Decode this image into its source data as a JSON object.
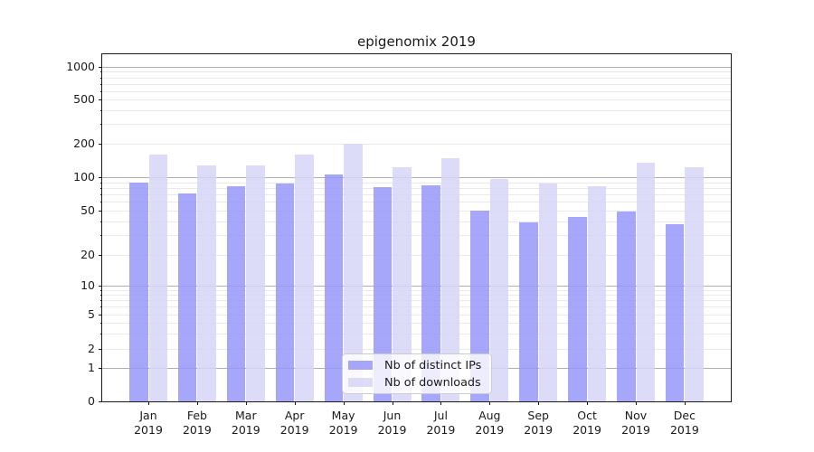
{
  "title": "epigenomix 2019",
  "chart_data": {
    "type": "bar",
    "title": "epigenomix 2019",
    "categories": [
      "Jan",
      "Feb",
      "Mar",
      "Apr",
      "May",
      "Jun",
      "Jul",
      "Aug",
      "Sep",
      "Oct",
      "Nov",
      "Dec"
    ],
    "category_year": "2019",
    "series": [
      {
        "name": "Nb of distinct IPs",
        "color": "#a6a6fa",
        "color_rgba": "rgba(149,149,249,0.84)",
        "values": [
          90,
          72,
          83,
          87,
          105,
          81,
          84,
          50,
          39,
          44,
          49,
          38
        ]
      },
      {
        "name": "Nb of downloads",
        "color": "#dcdcf8",
        "color_rgba": "rgba(213,213,247,0.84)",
        "values": [
          161,
          128,
          127,
          160,
          199,
          124,
          148,
          97,
          87,
          83,
          135,
          122
        ]
      }
    ],
    "yscale": "symlog",
    "yticks": [
      0,
      1,
      2,
      5,
      10,
      20,
      50,
      100,
      200,
      500,
      1000
    ],
    "ylim": [
      0,
      1300
    ],
    "xlabel": "",
    "ylabel": "",
    "grid": "major and minor horizontal gridlines",
    "legend_position": "lower center"
  },
  "colors": {
    "major_grid": "#b0b0b0",
    "minor_grid": "#e9e9e9",
    "axis": "#1a1a1a",
    "background": "#ffffff"
  }
}
